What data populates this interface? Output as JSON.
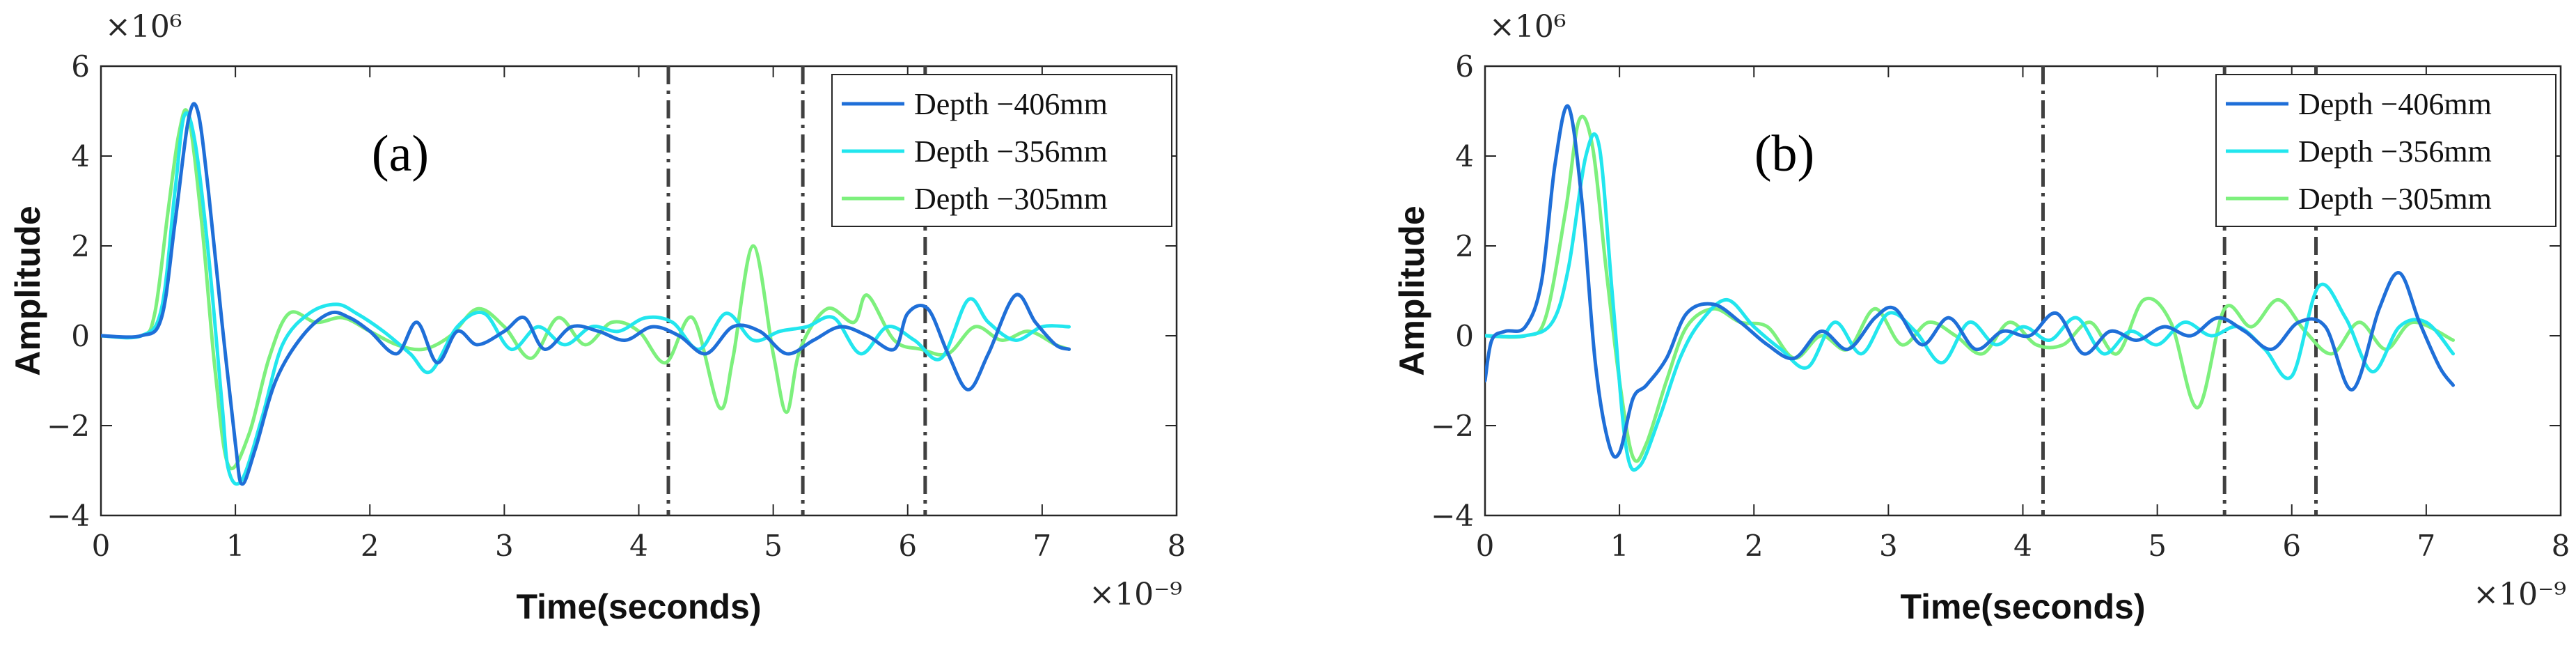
{
  "chart_data": [
    {
      "type": "line",
      "panel_label": "(a)",
      "xlabel": "Time(seconds)",
      "ylabel": "Amplitude",
      "x_multiplier": "×10⁻⁹",
      "y_multiplier": "×10⁶",
      "xlim": [
        0,
        8
      ],
      "ylim": [
        -4,
        6
      ],
      "x_ticks": [
        "0",
        "1",
        "2",
        "3",
        "4",
        "5",
        "6",
        "7",
        "8"
      ],
      "y_ticks": [
        "−4",
        "−2",
        "0",
        "2",
        "4",
        "6"
      ],
      "vlines": [
        4.22,
        5.22,
        6.13
      ],
      "series": [
        {
          "name": "Depth −406mm",
          "color": "#1f6fd8",
          "x": [
            0,
            0.3,
            0.45,
            0.55,
            0.65,
            0.72,
            0.8,
            0.9,
            1.0,
            1.05,
            1.15,
            1.3,
            1.5,
            1.7,
            1.85,
            2.0,
            2.2,
            2.35,
            2.5,
            2.65,
            2.8,
            3.0,
            3.15,
            3.3,
            3.5,
            3.7,
            3.9,
            4.1,
            4.3,
            4.5,
            4.7,
            4.9,
            5.1,
            5.3,
            5.5,
            5.7,
            5.9,
            6.0,
            6.15,
            6.3,
            6.45,
            6.6,
            6.8,
            6.95,
            7.1,
            7.2
          ],
          "y": [
            0,
            0,
            0.4,
            2.5,
            4.8,
            5.0,
            3.2,
            0.3,
            -2.4,
            -3.3,
            -2.5,
            -1.0,
            0.0,
            0.5,
            0.4,
            0.1,
            -0.4,
            0.3,
            -0.6,
            0.1,
            -0.2,
            0.1,
            0.4,
            -0.3,
            0.2,
            0.1,
            -0.1,
            0.2,
            0.0,
            -0.4,
            0.2,
            0.1,
            -0.4,
            -0.1,
            0.2,
            0.0,
            -0.3,
            0.5,
            0.6,
            -0.4,
            -1.2,
            -0.4,
            0.9,
            0.3,
            -0.2,
            -0.3
          ]
        },
        {
          "name": "Depth −356mm",
          "color": "#22e6ee",
          "x": [
            0,
            0.3,
            0.45,
            0.55,
            0.62,
            0.7,
            0.8,
            0.9,
            0.95,
            1.05,
            1.2,
            1.35,
            1.55,
            1.75,
            1.9,
            2.1,
            2.3,
            2.45,
            2.65,
            2.85,
            3.05,
            3.25,
            3.45,
            3.65,
            3.85,
            4.05,
            4.25,
            4.45,
            4.65,
            4.85,
            5.05,
            5.25,
            5.45,
            5.65,
            5.85,
            6.05,
            6.25,
            6.45,
            6.6,
            6.8,
            7.0,
            7.2
          ],
          "y": [
            0,
            0,
            0.6,
            3.2,
            4.9,
            4.3,
            1.8,
            -1.5,
            -3.0,
            -3.2,
            -1.8,
            -0.2,
            0.5,
            0.7,
            0.5,
            0.1,
            -0.4,
            -0.8,
            0.2,
            0.5,
            -0.3,
            0.2,
            -0.2,
            0.2,
            0.1,
            0.4,
            0.3,
            -0.3,
            0.5,
            -0.1,
            0.1,
            0.2,
            0.4,
            -0.4,
            0.2,
            -0.1,
            -0.5,
            0.8,
            0.3,
            -0.1,
            0.2,
            0.2
          ]
        },
        {
          "name": "Depth −305mm",
          "color": "#7df07d",
          "x": [
            0,
            0.3,
            0.4,
            0.5,
            0.58,
            0.65,
            0.75,
            0.85,
            0.95,
            1.1,
            1.25,
            1.4,
            1.6,
            1.8,
            2.0,
            2.2,
            2.4,
            2.6,
            2.8,
            3.0,
            3.2,
            3.4,
            3.6,
            3.8,
            4.0,
            4.2,
            4.4,
            4.6,
            4.7,
            4.85,
            5.0,
            5.1,
            5.2,
            5.4,
            5.6,
            5.7,
            5.9,
            6.1,
            6.3,
            6.5,
            6.7,
            6.9,
            7.1,
            7.2
          ],
          "y": [
            0,
            0,
            0.5,
            2.8,
            4.5,
            4.9,
            2.5,
            -0.8,
            -2.9,
            -2.2,
            -0.5,
            0.5,
            0.3,
            0.4,
            0.1,
            -0.2,
            -0.3,
            0.0,
            0.6,
            0.2,
            -0.5,
            0.4,
            -0.2,
            0.3,
            0.1,
            -0.6,
            0.4,
            -1.6,
            -0.5,
            2.0,
            -0.4,
            -1.7,
            -0.3,
            0.6,
            0.3,
            0.9,
            -0.1,
            -0.3,
            -0.4,
            0.2,
            -0.1,
            0.1,
            -0.2,
            -0.3
          ]
        }
      ]
    },
    {
      "type": "line",
      "panel_label": "(b)",
      "xlabel": "Time(seconds)",
      "ylabel": "Amplitude",
      "x_multiplier": "×10⁻⁹",
      "y_multiplier": "×10⁶",
      "xlim": [
        0,
        8
      ],
      "ylim": [
        -4,
        6
      ],
      "x_ticks": [
        "0",
        "1",
        "2",
        "3",
        "4",
        "5",
        "6",
        "7",
        "8"
      ],
      "y_ticks": [
        "−4",
        "−2",
        "0",
        "2",
        "4",
        "6"
      ],
      "vlines": [
        4.15,
        5.5,
        6.18
      ],
      "series": [
        {
          "name": "Depth −406mm",
          "color": "#1f6fd8",
          "x": [
            0,
            0.05,
            0.15,
            0.3,
            0.42,
            0.52,
            0.62,
            0.72,
            0.82,
            0.92,
            1.0,
            1.1,
            1.2,
            1.35,
            1.5,
            1.7,
            1.9,
            2.1,
            2.3,
            2.5,
            2.7,
            2.9,
            3.05,
            3.25,
            3.45,
            3.65,
            3.85,
            4.05,
            4.25,
            4.45,
            4.65,
            4.85,
            5.05,
            5.25,
            5.45,
            5.65,
            5.85,
            6.05,
            6.25,
            6.45,
            6.65,
            6.8,
            6.95,
            7.1,
            7.2
          ],
          "y": [
            -1.0,
            -0.1,
            0.1,
            0.2,
            1.2,
            3.8,
            5.1,
            3.0,
            -0.6,
            -2.4,
            -2.6,
            -1.4,
            -1.1,
            -0.5,
            0.5,
            0.7,
            0.3,
            -0.2,
            -0.5,
            0.1,
            -0.3,
            0.4,
            0.6,
            -0.2,
            0.4,
            -0.3,
            0.1,
            0.0,
            0.5,
            -0.4,
            0.1,
            -0.1,
            0.2,
            0.0,
            0.4,
            0.1,
            -0.3,
            0.3,
            0.2,
            -1.2,
            0.6,
            1.4,
            0.3,
            -0.7,
            -1.1
          ]
        },
        {
          "name": "Depth −356mm",
          "color": "#22e6ee",
          "x": [
            0,
            0.3,
            0.5,
            0.62,
            0.75,
            0.85,
            0.95,
            1.05,
            1.15,
            1.3,
            1.45,
            1.6,
            1.8,
            2.0,
            2.2,
            2.4,
            2.6,
            2.8,
            3.0,
            3.2,
            3.4,
            3.6,
            3.8,
            4.0,
            4.2,
            4.4,
            4.6,
            4.8,
            5.0,
            5.2,
            5.4,
            5.6,
            5.8,
            6.0,
            6.2,
            6.4,
            6.6,
            6.8,
            7.0,
            7.2
          ],
          "y": [
            0,
            0,
            0.3,
            1.5,
            4.0,
            4.2,
            0.8,
            -2.5,
            -2.9,
            -1.8,
            -0.5,
            0.3,
            0.8,
            0.2,
            -0.3,
            -0.7,
            0.3,
            -0.4,
            0.5,
            0.1,
            -0.6,
            0.3,
            -0.2,
            0.2,
            -0.1,
            0.4,
            -0.4,
            0.1,
            -0.2,
            0.3,
            0.0,
            0.2,
            -0.3,
            -0.9,
            1.1,
            0.4,
            -0.8,
            0.2,
            0.3,
            -0.4
          ]
        },
        {
          "name": "Depth −305mm",
          "color": "#7df07d",
          "x": [
            0,
            0.3,
            0.45,
            0.6,
            0.7,
            0.8,
            0.9,
            1.0,
            1.1,
            1.2,
            1.35,
            1.5,
            1.7,
            1.9,
            2.1,
            2.3,
            2.5,
            2.7,
            2.9,
            3.1,
            3.3,
            3.5,
            3.7,
            3.9,
            4.1,
            4.3,
            4.5,
            4.7,
            4.9,
            5.1,
            5.3,
            5.5,
            5.7,
            5.9,
            6.1,
            6.3,
            6.5,
            6.7,
            6.9,
            7.2
          ],
          "y": [
            0,
            0,
            0.4,
            2.8,
            4.8,
            4.2,
            1.5,
            -1.0,
            -2.7,
            -2.4,
            -1.0,
            0.2,
            0.6,
            0.3,
            0.2,
            -0.5,
            0.0,
            -0.3,
            0.6,
            -0.2,
            0.3,
            0.0,
            -0.4,
            0.3,
            -0.2,
            -0.2,
            0.3,
            -0.4,
            0.8,
            0.3,
            -1.6,
            0.6,
            0.2,
            0.8,
            0.1,
            -0.4,
            0.3,
            -0.3,
            0.3,
            -0.1
          ]
        }
      ]
    }
  ]
}
